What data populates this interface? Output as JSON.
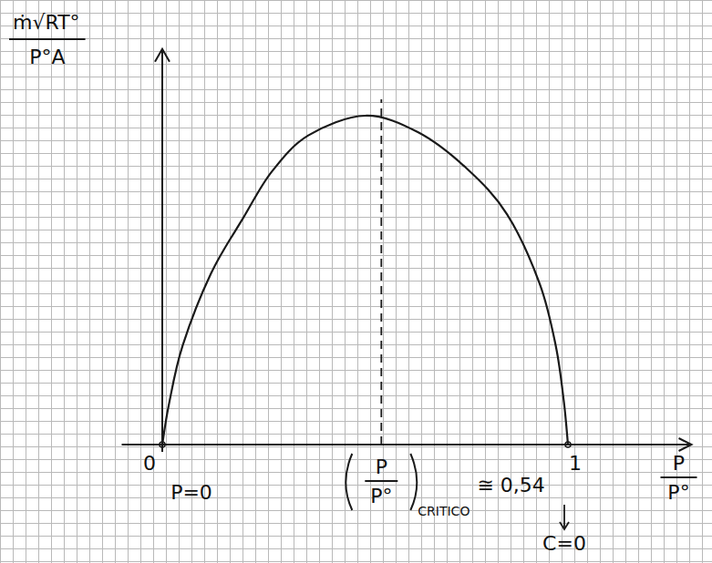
{
  "chart_data": {
    "type": "line",
    "x_label": {
      "numerator": "P",
      "denominator": "P°"
    },
    "y_label": {
      "numerator": "ṁ√RT°",
      "denominator": "P°A"
    },
    "x": [
      0,
      0.016,
      0.05,
      0.12,
      0.2,
      0.27,
      0.36,
      0.5,
      0.63,
      0.75,
      0.85,
      0.93,
      0.97,
      0.99,
      1
    ],
    "values": [
      0,
      0.12,
      0.3,
      0.52,
      0.69,
      0.83,
      0.94,
      1.0,
      0.95,
      0.84,
      0.7,
      0.49,
      0.3,
      0.13,
      0
    ],
    "color": "#1a1a1a",
    "line_style": "solid",
    "xlim": [
      -0.1,
      1.3
    ],
    "ylim": [
      0,
      1.2
    ],
    "xticks": [
      0,
      1
    ],
    "tick_labels": "x",
    "annotations": [
      {
        "text": "P=0",
        "x": 0
      },
      {
        "text": "C=0",
        "x": 1
      },
      {
        "x": 0.54,
        "label": {
          "numerator": "P",
          "denominator": "P°"
        },
        "subscript": "CRITICO",
        "value_label": "≅ 0,54"
      }
    ]
  }
}
